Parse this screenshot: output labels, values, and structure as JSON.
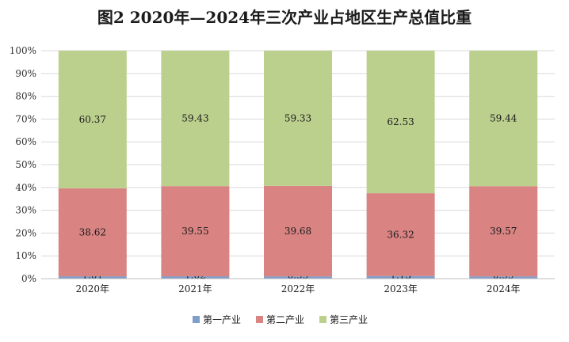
{
  "chart_data": {
    "type": "bar",
    "stacked": true,
    "percent_stacked": true,
    "title": "图2 2020年—2024年三次产业占地区生产总值比重",
    "categories": [
      "2020年",
      "2021年",
      "2022年",
      "2023年",
      "2024年"
    ],
    "series": [
      {
        "name": "第一产业",
        "color": "#7f9ec9",
        "values": [
          1.01,
          1.02,
          0.99,
          1.15,
          0.99
        ]
      },
      {
        "name": "第二产业",
        "color": "#d98383",
        "values": [
          38.62,
          39.55,
          39.68,
          36.32,
          39.57
        ]
      },
      {
        "name": "第三产业",
        "color": "#bcd08e",
        "values": [
          60.37,
          59.43,
          59.33,
          62.53,
          59.44
        ]
      }
    ],
    "ylim": [
      0,
      100
    ],
    "y_ticks": [
      "0%",
      "10%",
      "20%",
      "30%",
      "40%",
      "50%",
      "60%",
      "70%",
      "80%",
      "90%",
      "100%"
    ],
    "grid": true,
    "legend_position": "bottom"
  }
}
